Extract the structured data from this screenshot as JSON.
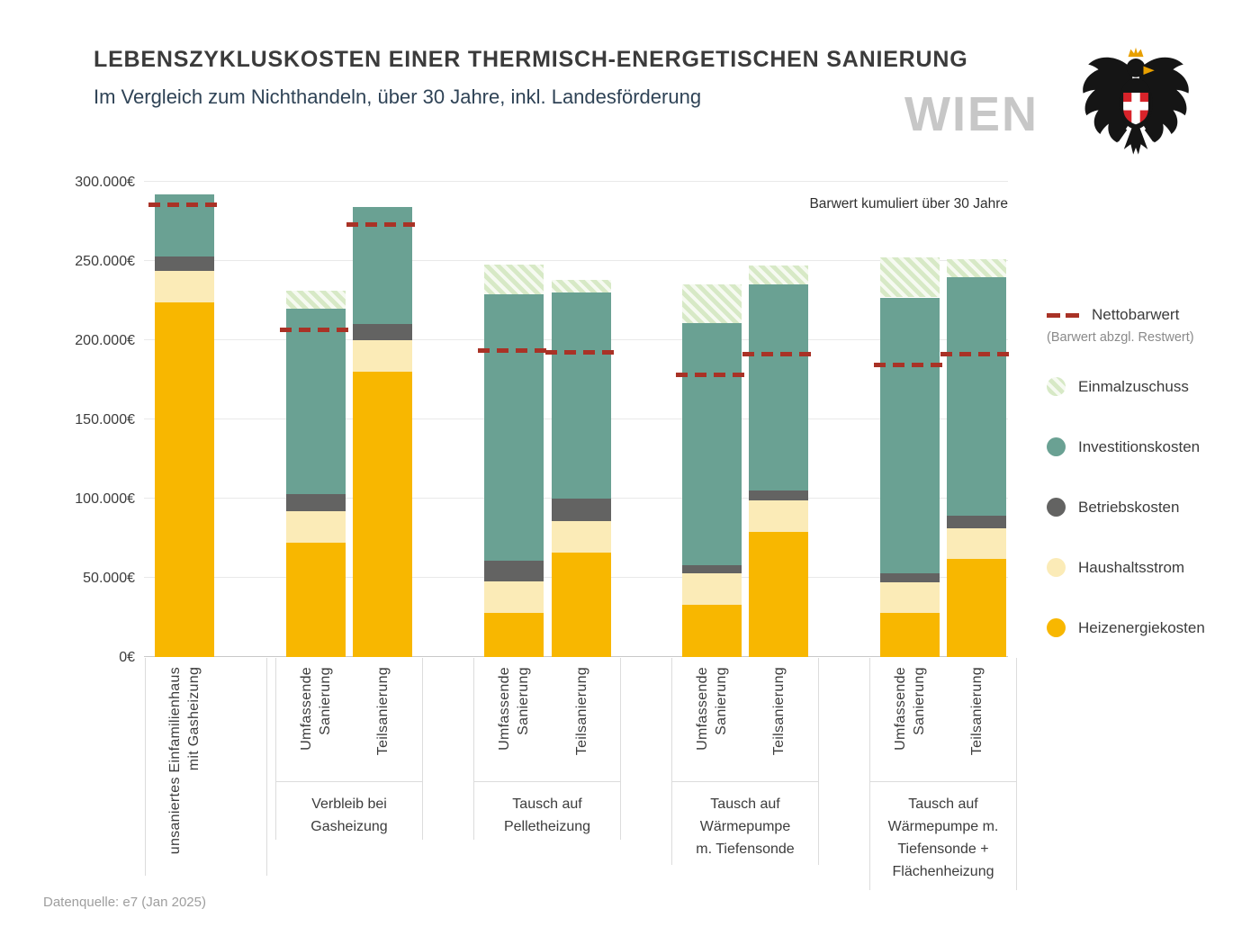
{
  "header": {
    "title": "LEBENSZYKLUSKOSTEN EINER THERMISCH-ENERGETISCHEN SANIERUNG",
    "subtitle": "Im Vergleich zum Nichthandeln, über 30 Jahre, inkl. Landesförderung",
    "watermark": "WIEN"
  },
  "legend": {
    "net": {
      "label": "Nettobarwert",
      "sublabel": "(Barwert abzgl. Restwert)"
    },
    "items": [
      {
        "key": "einmalzuschuss",
        "label": "Einmalzuschuss"
      },
      {
        "key": "investitionskosten",
        "label": "Investitionskosten"
      },
      {
        "key": "betriebskosten",
        "label": "Betriebskosten"
      },
      {
        "key": "haushaltsstrom",
        "label": "Haushaltsstrom"
      },
      {
        "key": "heizenergiekosten",
        "label": "Heizenergiekosten"
      }
    ]
  },
  "footer": {
    "source": "Datenquelle: e7 (Jan 2025)"
  },
  "chart_data": {
    "type": "bar",
    "stacked": true,
    "title": "Lebenszykluskosten einer thermisch-energetischen Sanierung",
    "annotation": "Barwert kumuliert über 30 Jahre",
    "ylim": [
      0,
      300000
    ],
    "yticks": [
      0,
      50000,
      100000,
      150000,
      200000,
      250000,
      300000
    ],
    "ytick_labels": [
      "0€",
      "50.000€",
      "100.000€",
      "150.000€",
      "200.000€",
      "250.000€",
      "300.000€"
    ],
    "grid": true,
    "legend_position": "right",
    "series_order": [
      "heizenergiekosten",
      "haushaltsstrom",
      "betriebskosten",
      "investitionskosten",
      "einmalzuschuss"
    ],
    "series_colors": {
      "heizenergiekosten": "#F8B700",
      "haushaltsstrom": "#FBEBB7",
      "betriebskosten": "#636362",
      "investitionskosten": "#6AA193",
      "einmalzuschuss": "hatch",
      "nettobarwert": "#A93226"
    },
    "groups": [
      {
        "label": "",
        "bars": [
          {
            "label": "unsaniertes Einfamilienhaus\nmit Gasheizung",
            "values": {
              "heizenergiekosten": 224000,
              "haushaltsstrom": 20000,
              "betriebskosten": 9000,
              "investitionskosten": 39000,
              "einmalzuschuss": 0
            },
            "nettobarwert": 285000
          }
        ]
      },
      {
        "label": "Verbleib bei\nGasheizung",
        "bars": [
          {
            "label": "Umfassende\nSanierung",
            "values": {
              "heizenergiekosten": 72000,
              "haushaltsstrom": 20000,
              "betriebskosten": 11000,
              "investitionskosten": 117000,
              "einmalzuschuss": 11000
            },
            "nettobarwert": 206000
          },
          {
            "label": "Teilsanierung",
            "values": {
              "heizenergiekosten": 180000,
              "haushaltsstrom": 20000,
              "betriebskosten": 10000,
              "investitionskosten": 74000,
              "einmalzuschuss": 0
            },
            "nettobarwert": 273000
          }
        ]
      },
      {
        "label": "Tausch auf\nPelletheizung",
        "bars": [
          {
            "label": "Umfassende\nSanierung",
            "values": {
              "heizenergiekosten": 28000,
              "haushaltsstrom": 20000,
              "betriebskosten": 13000,
              "investitionskosten": 168000,
              "einmalzuschuss": 19000
            },
            "nettobarwert": 193000
          },
          {
            "label": "Teilsanierung",
            "values": {
              "heizenergiekosten": 66000,
              "haushaltsstrom": 20000,
              "betriebskosten": 14000,
              "investitionskosten": 130000,
              "einmalzuschuss": 8000
            },
            "nettobarwert": 192000
          }
        ]
      },
      {
        "label": "Tausch auf\nWärmepumpe\nm. Tiefensonde",
        "bars": [
          {
            "label": "Umfassende\nSanierung",
            "values": {
              "heizenergiekosten": 33000,
              "haushaltsstrom": 20000,
              "betriebskosten": 5000,
              "investitionskosten": 153000,
              "einmalzuschuss": 24000
            },
            "nettobarwert": 178000
          },
          {
            "label": "Teilsanierung",
            "values": {
              "heizenergiekosten": 79000,
              "haushaltsstrom": 20000,
              "betriebskosten": 6000,
              "investitionskosten": 130000,
              "einmalzuschuss": 12000
            },
            "nettobarwert": 191000
          }
        ]
      },
      {
        "label": "Tausch auf\nWärmepumpe m.\nTiefensonde  +\nFlächenheizung",
        "bars": [
          {
            "label": "Umfassende\nSanierung",
            "values": {
              "heizenergiekosten": 28000,
              "haushaltsstrom": 19000,
              "betriebskosten": 6000,
              "investitionskosten": 174000,
              "einmalzuschuss": 25000
            },
            "nettobarwert": 184000
          },
          {
            "label": "Teilsanierung",
            "values": {
              "heizenergiekosten": 62000,
              "haushaltsstrom": 19000,
              "betriebskosten": 8000,
              "investitionskosten": 151000,
              "einmalzuschuss": 11000
            },
            "nettobarwert": 191000
          }
        ]
      }
    ]
  }
}
